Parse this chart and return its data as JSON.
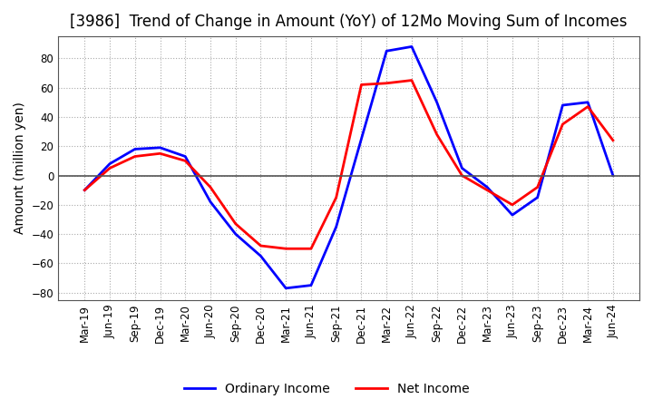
{
  "title": "[3986]  Trend of Change in Amount (YoY) of 12Mo Moving Sum of Incomes",
  "ylabel": "Amount (million yen)",
  "ylim": [
    -85,
    95
  ],
  "yticks": [
    -80,
    -60,
    -40,
    -20,
    0,
    20,
    40,
    60,
    80
  ],
  "x_labels": [
    "Mar-19",
    "Jun-19",
    "Sep-19",
    "Dec-19",
    "Mar-20",
    "Jun-20",
    "Sep-20",
    "Dec-20",
    "Mar-21",
    "Jun-21",
    "Sep-21",
    "Dec-21",
    "Mar-22",
    "Jun-22",
    "Sep-22",
    "Dec-22",
    "Mar-23",
    "Jun-23",
    "Sep-23",
    "Dec-23",
    "Mar-24",
    "Jun-24"
  ],
  "ordinary_income": [
    -10,
    8,
    18,
    19,
    13,
    -18,
    -40,
    -55,
    -77,
    -75,
    -35,
    25,
    85,
    88,
    50,
    5,
    -8,
    -27,
    -15,
    48,
    50,
    0
  ],
  "net_income": [
    -10,
    5,
    13,
    15,
    10,
    -8,
    -33,
    -48,
    -50,
    -50,
    -15,
    62,
    63,
    65,
    28,
    0,
    -10,
    -20,
    -8,
    35,
    47,
    24
  ],
  "ordinary_color": "#0000ff",
  "net_color": "#ff0000",
  "legend_labels": [
    "Ordinary Income",
    "Net Income"
  ],
  "background_color": "#ffffff",
  "grid_color": "#aaaaaa",
  "title_fontsize": 12,
  "label_fontsize": 10,
  "tick_fontsize": 8.5
}
